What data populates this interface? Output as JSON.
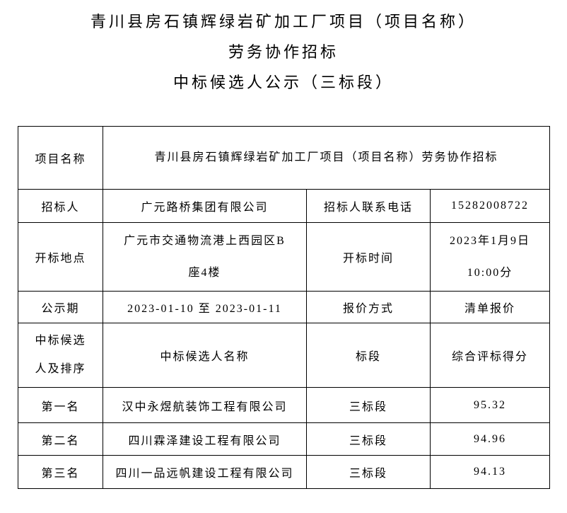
{
  "header": {
    "lines": [
      "青川县房石镇辉绿岩矿加工厂项目（项目名称）",
      "劳务协作招标",
      "中标候选人公示（三标段）"
    ]
  },
  "table": {
    "project_name": {
      "label": "项目名称",
      "value": "青川县房石镇辉绿岩矿加工厂项目（项目名称）劳务协作招标"
    },
    "bidder": {
      "label": "招标人",
      "value": "广元路桥集团有限公司"
    },
    "bidder_phone": {
      "label": "招标人联系电话",
      "value": "15282008722"
    },
    "bid_opening_place": {
      "label": "开标地点",
      "line1": "广元市交通物流港上西园区B",
      "line2": "座4楼"
    },
    "bid_opening_time": {
      "label": "开标时间",
      "line1": "2023年1月9日",
      "line2": "10:00分"
    },
    "publicity_period": {
      "label": "公示期",
      "value": "2023-01-10 至 2023-01-11"
    },
    "quotation_method": {
      "label": "报价方式",
      "value": "清单报价"
    },
    "candidate_header": {
      "rank_label_line1": "中标候选",
      "rank_label_line2": "人及排序",
      "name_label": "中标候选人名称",
      "section_label": "标段",
      "score_label": "综合评标得分"
    },
    "candidates": [
      {
        "rank": "第一名",
        "name": "汉中永煜航装饰工程有限公司",
        "section": "三标段",
        "score": "95.32"
      },
      {
        "rank": "第二名",
        "name": "四川霖泽建设工程有限公司",
        "section": "三标段",
        "score": "94.96"
      },
      {
        "rank": "第三名",
        "name": "四川一品远帆建设工程有限公司",
        "section": "三标段",
        "score": "94.13"
      }
    ]
  }
}
